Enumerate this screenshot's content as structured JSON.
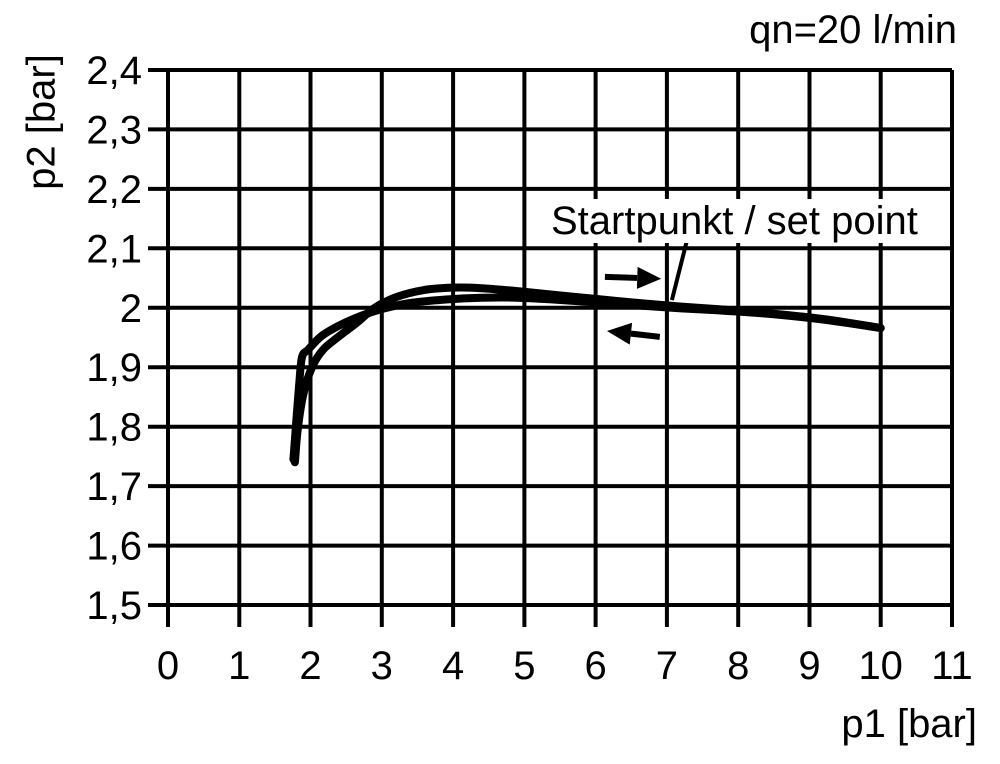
{
  "chart_data": {
    "type": "line",
    "title": "",
    "flow_note": "qn=20 l/min",
    "xlabel": "p1 [bar]",
    "ylabel": "p2 [bar]",
    "xlim": [
      0,
      11
    ],
    "ylim": [
      1.5,
      2.4
    ],
    "grid": true,
    "legend": "none",
    "line_color": "#000000",
    "background_color": "#ffffff",
    "x_ticks": [
      0,
      1,
      2,
      3,
      4,
      5,
      6,
      7,
      8,
      9,
      10,
      11
    ],
    "x_tick_labels": [
      "0",
      "1",
      "2",
      "3",
      "4",
      "5",
      "6",
      "7",
      "8",
      "9",
      "10",
      "11"
    ],
    "y_ticks": [
      2.4,
      2.3,
      2.2,
      2.1,
      2.0,
      1.9,
      1.8,
      1.7,
      1.6,
      1.5
    ],
    "y_tick_labels": [
      "2,4",
      "2,3",
      "2,2",
      "2,1",
      "2",
      "1,9",
      "1,8",
      "1,7",
      "1,6",
      "1,5"
    ],
    "series": [
      {
        "name": "p1 increasing (right arrow)",
        "x": [
          1.78,
          1.82,
          1.9,
          2.02,
          2.18,
          2.4,
          2.65,
          2.9,
          3.2,
          3.6,
          4.0,
          4.4,
          4.9,
          5.4,
          6.0,
          6.6,
          7.2,
          7.8,
          8.4,
          9.2,
          10.0
        ],
        "y": [
          1.74,
          1.795,
          1.855,
          1.9,
          1.93,
          1.952,
          1.975,
          2.0,
          2.018,
          2.03,
          2.034,
          2.033,
          2.028,
          2.022,
          2.015,
          2.008,
          2.002,
          1.997,
          1.991,
          1.981,
          1.966
        ]
      },
      {
        "name": "p1 decreasing (left arrow)",
        "x": [
          10.0,
          9.2,
          8.4,
          7.8,
          7.2,
          6.6,
          6.0,
          5.4,
          4.9,
          4.4,
          3.9,
          3.4,
          3.0,
          2.7,
          2.4,
          2.15,
          1.97,
          1.88,
          1.84,
          1.8,
          1.76
        ],
        "y": [
          1.966,
          1.98,
          1.99,
          1.995,
          1.999,
          2.004,
          2.009,
          2.014,
          2.017,
          2.017,
          2.014,
          2.008,
          1.998,
          1.986,
          1.97,
          1.952,
          1.93,
          1.917,
          1.87,
          1.81,
          1.745
        ]
      }
    ],
    "arrows": [
      {
        "direction": "right",
        "tail": {
          "p1": 6.13,
          "p2": 2.052
        },
        "tip": {
          "p1": 6.92,
          "p2": 2.049
        }
      },
      {
        "direction": "left",
        "tail": {
          "p1": 6.9,
          "p2": 1.951
        },
        "tip": {
          "p1": 6.16,
          "p2": 1.961
        }
      }
    ],
    "annotation": {
      "text": "Startpunkt / set point",
      "leader": {
        "from": {
          "p1": 7.28,
          "p2": 2.113
        },
        "to": {
          "p1": 7.07,
          "p2": 2.013
        }
      }
    }
  }
}
